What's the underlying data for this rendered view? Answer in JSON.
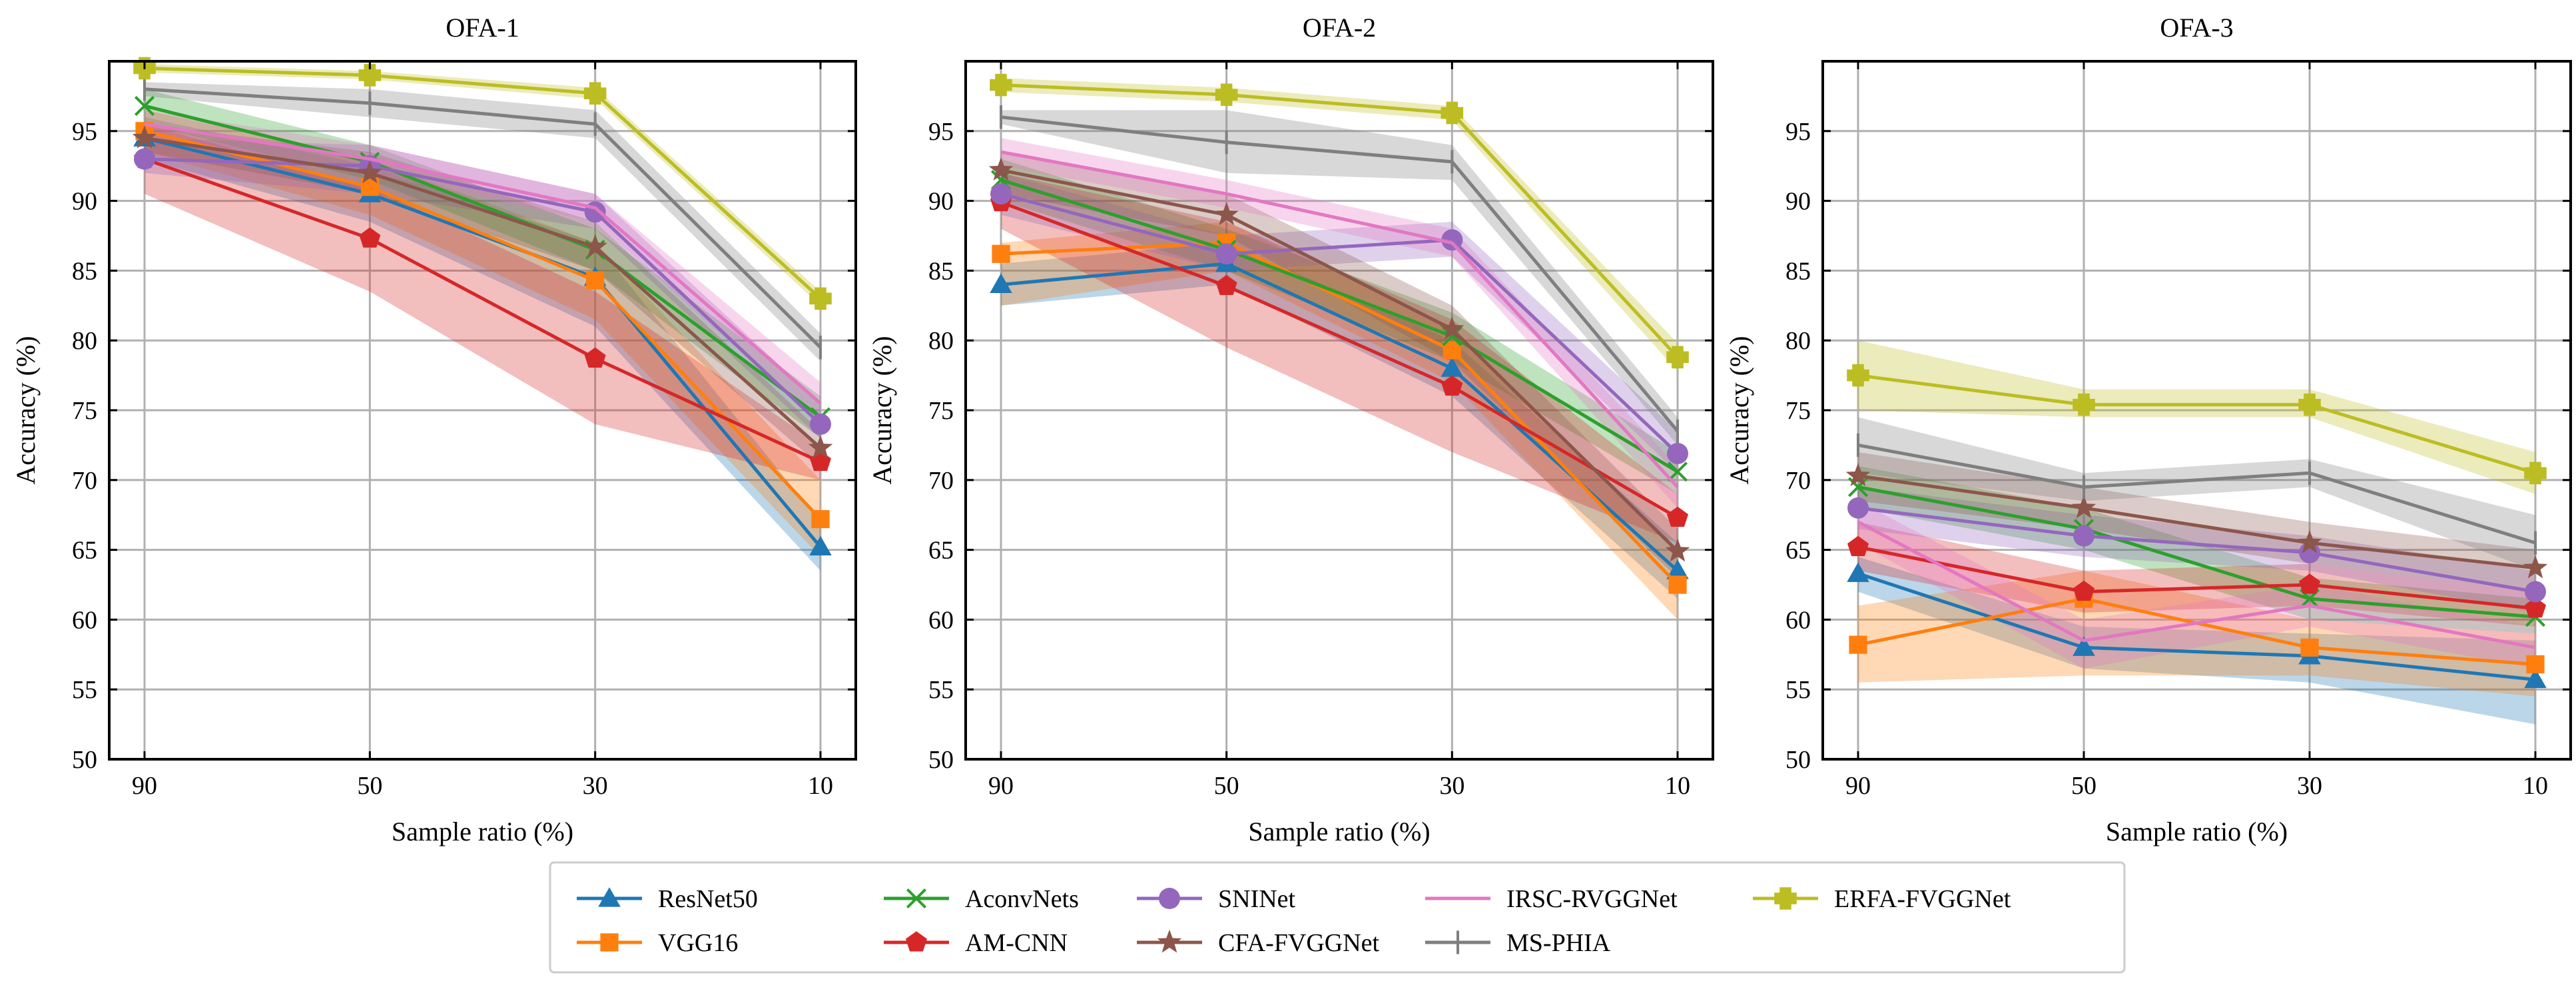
{
  "chart_data": {
    "type": "line",
    "xlabel": "Sample ratio (%)",
    "ylabel": "Accuracy (%)",
    "categories": [
      "90",
      "50",
      "30",
      "10"
    ],
    "ylim": [
      50,
      100
    ],
    "yticks": [
      "50",
      "55",
      "60",
      "65",
      "70",
      "75",
      "80",
      "85",
      "90",
      "95"
    ],
    "grid": true,
    "legend_position": "bottom-center",
    "legend": [
      {
        "name": "ResNet50",
        "color": "#1f77b4",
        "marker": "triangle"
      },
      {
        "name": "AconvNets",
        "color": "#2ca02c",
        "marker": "x"
      },
      {
        "name": "SNINet",
        "color": "#9467bd",
        "marker": "circle"
      },
      {
        "name": "IRSC-RVGGNet",
        "color": "#e377c2",
        "marker": "none"
      },
      {
        "name": "ERFA-FVGGNet",
        "color": "#bcbd22",
        "marker": "plus"
      },
      {
        "name": "VGG16",
        "color": "#ff7f0e",
        "marker": "square"
      },
      {
        "name": "AM-CNN",
        "color": "#d62728",
        "marker": "pentagon"
      },
      {
        "name": "CFA-FVGGNet",
        "color": "#8c564b",
        "marker": "star"
      },
      {
        "name": "MS-PHIA",
        "color": "#7f7f7f",
        "marker": "vline"
      }
    ],
    "panels": [
      {
        "title": "OFA-1",
        "series": [
          {
            "name": "ResNet50",
            "values": [
              94.5,
              90.5,
              84.5,
              65.2
            ],
            "lower": [
              93.0,
              88.5,
              81.0,
              63.5
            ],
            "upper": [
              96.0,
              92.5,
              87.0,
              67.0
            ]
          },
          {
            "name": "VGG16",
            "values": [
              95.0,
              91.0,
              84.3,
              67.2
            ],
            "lower": [
              93.5,
              89.0,
              81.5,
              64.5
            ],
            "upper": [
              96.5,
              93.0,
              87.0,
              70.0
            ]
          },
          {
            "name": "AconvNets",
            "values": [
              96.8,
              92.8,
              86.5,
              74.5
            ],
            "lower": [
              95.5,
              91.5,
              85.0,
              73.0
            ],
            "upper": [
              98.0,
              94.0,
              88.0,
              76.0
            ]
          },
          {
            "name": "AM-CNN",
            "values": [
              93.0,
              87.3,
              78.7,
              71.3
            ],
            "lower": [
              90.5,
              83.5,
              74.0,
              70.0
            ],
            "upper": [
              95.5,
              91.0,
              83.5,
              72.5
            ]
          },
          {
            "name": "SNINet",
            "values": [
              93.0,
              92.5,
              89.2,
              74.0
            ],
            "lower": [
              92.0,
              90.5,
              88.0,
              73.0
            ],
            "upper": [
              94.5,
              94.0,
              90.5,
              75.5
            ]
          },
          {
            "name": "CFA-FVGGNet",
            "values": [
              94.5,
              92.0,
              86.7,
              72.3
            ],
            "lower": [
              93.5,
              90.5,
              85.0,
              71.0
            ],
            "upper": [
              95.5,
              93.5,
              88.5,
              73.5
            ]
          },
          {
            "name": "IRSC-RVGGNet",
            "values": [
              95.5,
              93.0,
              89.5,
              75.5
            ],
            "lower": [
              94.5,
              92.0,
              88.5,
              74.0
            ],
            "upper": [
              96.5,
              94.0,
              90.5,
              77.0
            ]
          },
          {
            "name": "MS-PHIA",
            "values": [
              98.0,
              97.0,
              95.5,
              79.5
            ],
            "lower": [
              97.5,
              96.0,
              94.5,
              78.5
            ],
            "upper": [
              98.5,
              98.0,
              96.5,
              80.5
            ]
          },
          {
            "name": "ERFA-FVGGNet",
            "values": [
              99.5,
              99.0,
              97.7,
              83.0
            ],
            "lower": [
              99.2,
              98.7,
              97.3,
              82.5
            ],
            "upper": [
              99.8,
              99.3,
              98.1,
              83.5
            ]
          }
        ]
      },
      {
        "title": "OFA-2",
        "series": [
          {
            "name": "ResNet50",
            "values": [
              84.0,
              85.5,
              78.0,
              63.5
            ],
            "lower": [
              82.5,
              84.0,
              76.0,
              61.5
            ],
            "upper": [
              85.5,
              87.0,
              80.0,
              65.5
            ]
          },
          {
            "name": "VGG16",
            "values": [
              86.2,
              87.0,
              79.3,
              62.5
            ],
            "lower": [
              82.5,
              85.0,
              77.0,
              60.0
            ],
            "upper": [
              87.0,
              88.5,
              81.0,
              65.0
            ]
          },
          {
            "name": "AconvNets",
            "values": [
              91.5,
              86.5,
              80.3,
              70.6
            ],
            "lower": [
              90.0,
              85.0,
              78.5,
              69.0
            ],
            "upper": [
              93.0,
              88.0,
              82.0,
              72.0
            ]
          },
          {
            "name": "AM-CNN",
            "values": [
              89.9,
              83.9,
              76.7,
              67.3
            ],
            "lower": [
              88.0,
              79.5,
              72.0,
              65.5
            ],
            "upper": [
              92.0,
              88.5,
              81.5,
              69.0
            ]
          },
          {
            "name": "SNINet",
            "values": [
              90.5,
              86.2,
              87.2,
              71.9
            ],
            "lower": [
              89.0,
              85.0,
              86.0,
              70.5
            ],
            "upper": [
              92.0,
              87.5,
              88.5,
              73.5
            ]
          },
          {
            "name": "CFA-FVGGNet",
            "values": [
              92.2,
              89.0,
              80.8,
              64.9
            ],
            "lower": [
              90.5,
              87.5,
              78.5,
              63.0
            ],
            "upper": [
              93.5,
              90.5,
              82.5,
              66.5
            ]
          },
          {
            "name": "IRSC-RVGGNet",
            "values": [
              93.5,
              90.5,
              87.0,
              69.5
            ],
            "lower": [
              92.5,
              89.5,
              86.0,
              68.0
            ],
            "upper": [
              94.5,
              91.5,
              88.0,
              71.0
            ]
          },
          {
            "name": "MS-PHIA",
            "values": [
              96.0,
              94.2,
              92.8,
              73.5
            ],
            "lower": [
              95.5,
              92.0,
              91.5,
              72.5
            ],
            "upper": [
              96.5,
              96.5,
              94.0,
              74.5
            ]
          },
          {
            "name": "ERFA-FVGGNet",
            "values": [
              98.3,
              97.6,
              96.3,
              78.8
            ],
            "lower": [
              97.8,
              97.1,
              95.8,
              77.8
            ],
            "upper": [
              98.8,
              98.1,
              96.8,
              79.8
            ]
          }
        ]
      },
      {
        "title": "OFA-3",
        "series": [
          {
            "name": "ResNet50",
            "values": [
              63.3,
              58.0,
              57.4,
              55.7
            ],
            "lower": [
              62.0,
              56.5,
              55.5,
              52.5
            ],
            "upper": [
              64.5,
              59.5,
              59.0,
              58.5
            ]
          },
          {
            "name": "VGG16",
            "values": [
              58.2,
              61.5,
              58.0,
              56.8
            ],
            "lower": [
              55.5,
              56.0,
              56.0,
              54.5
            ],
            "upper": [
              61.0,
              63.5,
              60.0,
              59.0
            ]
          },
          {
            "name": "AconvNets",
            "values": [
              69.5,
              66.5,
              61.5,
              60.2
            ],
            "lower": [
              68.0,
              65.0,
              60.0,
              59.0
            ],
            "upper": [
              71.0,
              68.0,
              63.0,
              61.5
            ]
          },
          {
            "name": "AM-CNN",
            "values": [
              65.2,
              62.0,
              62.5,
              60.8
            ],
            "lower": [
              63.5,
              60.5,
              61.0,
              59.5
            ],
            "upper": [
              67.0,
              63.5,
              64.0,
              62.0
            ]
          },
          {
            "name": "SNINet",
            "values": [
              68.0,
              66.0,
              64.8,
              62.0
            ],
            "lower": [
              66.5,
              64.5,
              63.5,
              60.5
            ],
            "upper": [
              69.5,
              67.5,
              66.0,
              63.5
            ]
          },
          {
            "name": "CFA-FVGGNet",
            "values": [
              70.3,
              68.0,
              65.5,
              63.7
            ],
            "lower": [
              68.5,
              66.5,
              64.0,
              62.0
            ],
            "upper": [
              72.0,
              69.5,
              67.0,
              65.0
            ]
          },
          {
            "name": "IRSC-RVGGNet",
            "values": [
              67.0,
              58.5,
              61.0,
              58.0
            ],
            "lower": [
              65.5,
              56.5,
              59.5,
              56.5
            ],
            "upper": [
              68.5,
              60.0,
              62.5,
              59.5
            ]
          },
          {
            "name": "MS-PHIA",
            "values": [
              72.5,
              69.5,
              70.5,
              65.5
            ],
            "lower": [
              70.5,
              68.5,
              69.5,
              63.5
            ],
            "upper": [
              74.5,
              70.5,
              71.5,
              67.5
            ]
          },
          {
            "name": "ERFA-FVGGNet",
            "values": [
              77.5,
              75.4,
              75.4,
              70.5
            ],
            "lower": [
              75.0,
              74.5,
              74.5,
              69.0
            ],
            "upper": [
              80.0,
              76.5,
              76.5,
              72.0
            ]
          }
        ]
      }
    ]
  }
}
